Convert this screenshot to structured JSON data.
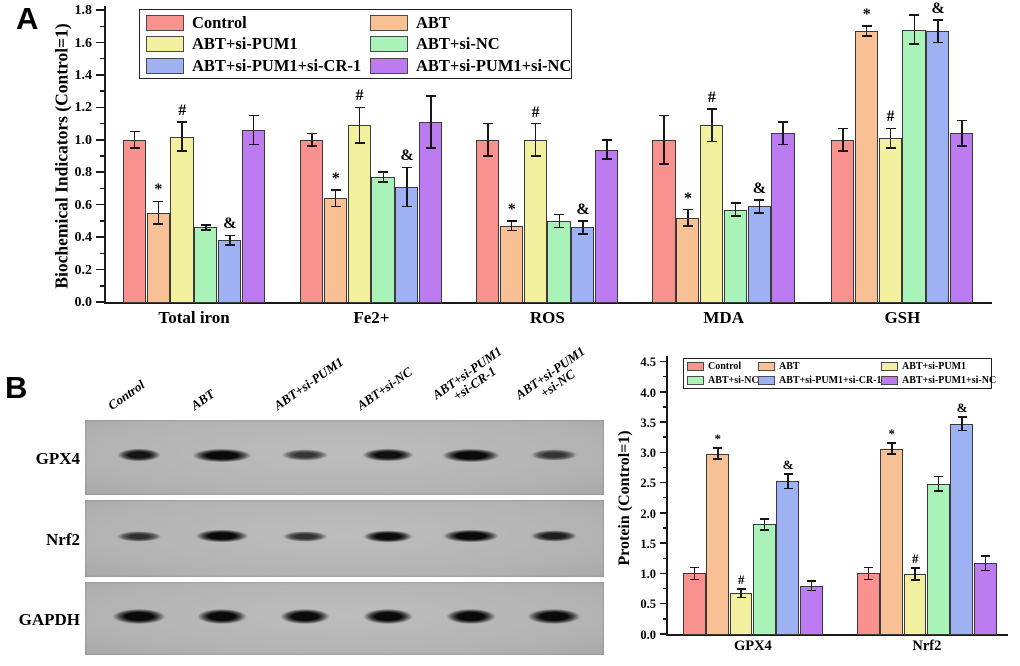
{
  "panel_a": {
    "label": "A"
  },
  "panel_b": {
    "label": "B"
  },
  "colors": {
    "control": "#f9918f",
    "abt": "#f7c095",
    "abt_si_pum1": "#f3f0a0",
    "abt_si_nc": "#a9f3b9",
    "abt_si_pum1_si_cr1": "#9db1f3",
    "abt_si_pum1_si_nc": "#bd7bf2",
    "error_bar": "#161616",
    "blot_background": "#b5b5b5"
  },
  "chart_data": [
    {
      "id": "biochemical-indicators",
      "type": "bar",
      "title": "",
      "xlabel": "",
      "ylabel": "Biochemical Indicators (Control=1)",
      "ylim": [
        0,
        1.8
      ],
      "ytick_step": 0.2,
      "ytick_minor_step": 0.1,
      "grid": false,
      "legend_position": "top-inside",
      "categories": [
        "Total iron",
        "Fe2+",
        "ROS",
        "MDA",
        "GSH"
      ],
      "series": [
        {
          "name": "Control",
          "color": "#f9918f",
          "values": [
            1.0,
            1.0,
            1.0,
            1.0,
            1.0
          ],
          "errors": [
            0.05,
            0.04,
            0.1,
            0.15,
            0.07
          ],
          "sig": [
            "",
            "",
            "",
            "",
            ""
          ]
        },
        {
          "name": "ABT",
          "color": "#f7c095",
          "values": [
            0.55,
            0.64,
            0.47,
            0.52,
            1.67
          ],
          "errors": [
            0.07,
            0.05,
            0.03,
            0.05,
            0.03
          ],
          "sig": [
            "*",
            "*",
            "*",
            "*",
            "*"
          ]
        },
        {
          "name": "ABT+si-PUM1",
          "color": "#f3f0a0",
          "values": [
            1.02,
            1.09,
            1.0,
            1.09,
            1.01
          ],
          "errors": [
            0.09,
            0.11,
            0.1,
            0.1,
            0.06
          ],
          "sig": [
            "#",
            "#",
            "#",
            "#",
            "#"
          ]
        },
        {
          "name": "ABT+si-NC",
          "color": "#a9f3b9",
          "values": [
            0.46,
            0.77,
            0.5,
            0.57,
            1.68
          ],
          "errors": [
            0.015,
            0.03,
            0.04,
            0.04,
            0.09
          ],
          "sig": [
            "",
            "",
            "",
            "",
            ""
          ]
        },
        {
          "name": "ABT+si-PUM1+si-CR-1",
          "color": "#9db1f3",
          "values": [
            0.38,
            0.71,
            0.46,
            0.59,
            1.67
          ],
          "errors": [
            0.03,
            0.12,
            0.04,
            0.04,
            0.07
          ],
          "sig": [
            "&",
            "&",
            "&",
            "&",
            "&"
          ]
        },
        {
          "name": "ABT+si-PUM1+si-NC",
          "color": "#bd7bf2",
          "values": [
            1.06,
            1.11,
            0.94,
            1.04,
            1.04
          ],
          "errors": [
            0.09,
            0.16,
            0.06,
            0.07,
            0.08
          ],
          "sig": [
            "",
            "",
            "",
            "",
            ""
          ]
        }
      ]
    },
    {
      "id": "protein-levels",
      "type": "bar",
      "title": "",
      "xlabel": "",
      "ylabel": "Protein (Control=1)",
      "ylim": [
        0,
        4.5
      ],
      "ytick_step": 0.5,
      "ytick_minor_step": 0.25,
      "grid": false,
      "legend_position": "top-inside",
      "categories": [
        "GPX4",
        "Nrf2"
      ],
      "series": [
        {
          "name": "Control",
          "color": "#f9918f",
          "values": [
            1.0,
            1.0
          ],
          "errors": [
            0.1,
            0.1
          ],
          "sig": [
            "",
            ""
          ]
        },
        {
          "name": "ABT",
          "color": "#f7c095",
          "values": [
            2.98,
            3.06
          ],
          "errors": [
            0.09,
            0.09
          ],
          "sig": [
            "*",
            "*"
          ]
        },
        {
          "name": "ABT+si-PUM1",
          "color": "#f3f0a0",
          "values": [
            0.67,
            0.99
          ],
          "errors": [
            0.07,
            0.1
          ],
          "sig": [
            "#",
            "#"
          ]
        },
        {
          "name": "ABT+si-NC",
          "color": "#a9f3b9",
          "values": [
            1.81,
            2.48
          ],
          "errors": [
            0.09,
            0.12
          ],
          "sig": [
            "",
            ""
          ]
        },
        {
          "name": "ABT+si-PUM1+si-CR-1",
          "color": "#9db1f3",
          "values": [
            2.52,
            3.47
          ],
          "errors": [
            0.12,
            0.11
          ],
          "sig": [
            "&",
            "&"
          ]
        },
        {
          "name": "ABT+si-PUM1+si-NC",
          "color": "#bd7bf2",
          "values": [
            0.8,
            1.17
          ],
          "errors": [
            0.08,
            0.12
          ],
          "sig": [
            "",
            ""
          ]
        }
      ]
    }
  ],
  "blots": {
    "lane_labels": [
      [
        "Control"
      ],
      [
        "ABT"
      ],
      [
        "ABT+si-PUM1"
      ],
      [
        "ABT+si-NC"
      ],
      [
        "ABT+si-PUM1",
        "+si-CR-1"
      ],
      [
        "ABT+si-PUM1",
        "+si-NC"
      ]
    ],
    "rows": [
      {
        "label": "GPX4",
        "band_height": 16,
        "bands": [
          {
            "w": 54,
            "d": 0.8
          },
          {
            "w": 74,
            "d": 1.0
          },
          {
            "w": 58,
            "d": 0.45
          },
          {
            "w": 64,
            "d": 0.85
          },
          {
            "w": 72,
            "d": 1.0
          },
          {
            "w": 58,
            "d": 0.45
          }
        ]
      },
      {
        "label": "Nrf2",
        "band_height": 15,
        "bands": [
          {
            "w": 56,
            "d": 0.5
          },
          {
            "w": 66,
            "d": 0.95
          },
          {
            "w": 56,
            "d": 0.5
          },
          {
            "w": 62,
            "d": 0.9
          },
          {
            "w": 70,
            "d": 1.0
          },
          {
            "w": 58,
            "d": 0.7
          }
        ]
      },
      {
        "label": "GAPDH",
        "band_height": 18,
        "bands": [
          {
            "w": 66,
            "d": 1.0
          },
          {
            "w": 62,
            "d": 1.0
          },
          {
            "w": 62,
            "d": 1.0
          },
          {
            "w": 62,
            "d": 1.0
          },
          {
            "w": 62,
            "d": 1.0
          },
          {
            "w": 66,
            "d": 1.0
          }
        ]
      }
    ]
  }
}
